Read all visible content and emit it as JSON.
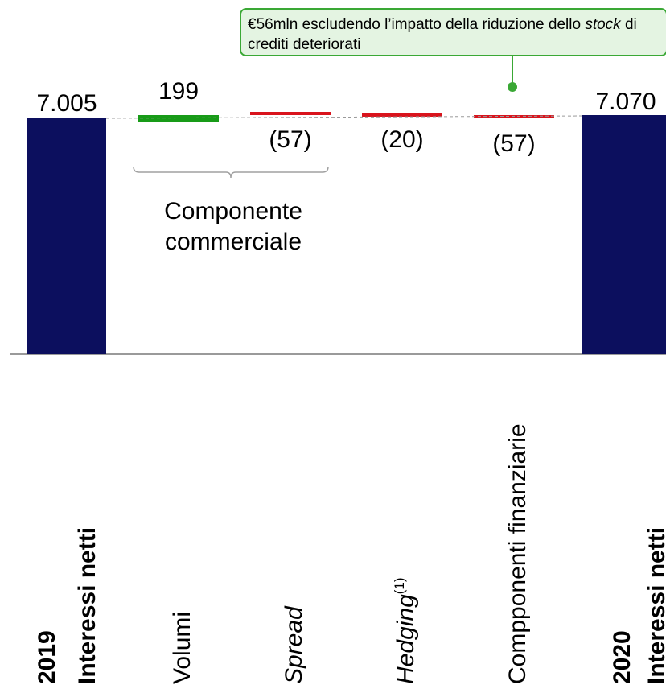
{
  "chart_data": {
    "type": "bar",
    "subtype": "waterfall",
    "categories": [
      {
        "year": "2019",
        "label": "Interessi netti",
        "bold": true,
        "italic": false,
        "sup": ""
      },
      {
        "year": "",
        "label": "Volumi",
        "bold": false,
        "italic": false,
        "sup": ""
      },
      {
        "year": "",
        "label": "Spread",
        "bold": false,
        "italic": true,
        "sup": ""
      },
      {
        "year": "",
        "label": "Hedging",
        "bold": false,
        "italic": true,
        "sup": "(1)"
      },
      {
        "year": "",
        "label": "Compponenti finanziarie",
        "bold": false,
        "italic": false,
        "sup": ""
      },
      {
        "year": "2020",
        "label": "Interessi netti",
        "bold": true,
        "italic": false,
        "sup": ""
      }
    ],
    "values": [
      7005,
      199,
      -57,
      -20,
      -57,
      7070
    ],
    "kinds": [
      "total",
      "delta",
      "delta",
      "delta",
      "delta",
      "total"
    ],
    "data_labels": [
      "7.005",
      "199",
      "(57)",
      "(20)",
      "(57)",
      "7.070"
    ],
    "colors": {
      "total": "#0c0f5e",
      "increase": "#189b18",
      "decrease": "#d9141d",
      "connector": "#9a9a9a",
      "bracket": "#a0a0a0",
      "callout_border": "#3aa835",
      "callout_fill": "#e4f4e2"
    }
  },
  "group_bracket": {
    "label_line1": "Componente",
    "label_line2": "commerciale"
  },
  "callout": {
    "text_before": "€56mln escludendo l’impatto della riduzione dello ",
    "text_italic": "stock",
    "text_after": " di crediti deteriorati"
  }
}
